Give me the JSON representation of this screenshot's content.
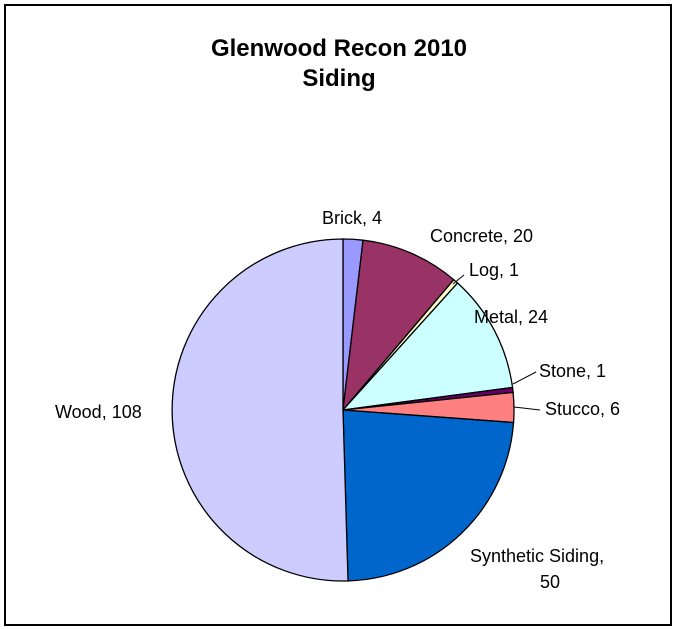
{
  "chart_data": {
    "type": "pie",
    "title": "Glenwood Recon 2010",
    "subtitle": "Siding",
    "slices": [
      {
        "label": "Brick, 4",
        "value": 4,
        "color": "#9999FF"
      },
      {
        "label": "Concrete, 20",
        "value": 20,
        "color": "#993366"
      },
      {
        "label": "Log, 1",
        "value": 1,
        "color": "#FFFFCC"
      },
      {
        "label": "Metal, 24",
        "value": 24,
        "color": "#CCFFFF"
      },
      {
        "label": "Stone, 1",
        "value": 1,
        "color": "#660066"
      },
      {
        "label": "Stucco, 6",
        "value": 6,
        "color": "#FF8080"
      },
      {
        "label": "Synthetic Siding,",
        "label_line2": "50",
        "value": 50,
        "color": "#0066CC"
      },
      {
        "label": "Wood, 108",
        "value": 108,
        "color": "#CCCCFF"
      }
    ]
  }
}
